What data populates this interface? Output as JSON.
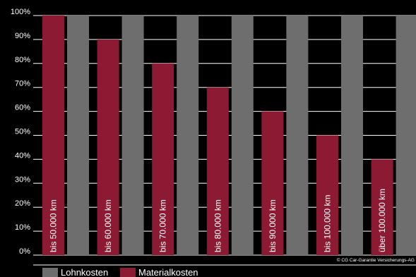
{
  "chart_data": {
    "type": "bar",
    "categories": [
      "bis 50.000 km",
      "bis 60.000 km",
      "bis 70.000 km",
      "bis 80.000 km",
      "bis 90.000 km",
      "bis 100.000 km",
      "über 100.000 km"
    ],
    "series": [
      {
        "name": "Materialkosten",
        "color": "#8b1a32",
        "values": [
          100,
          90,
          80,
          70,
          60,
          50,
          40
        ]
      },
      {
        "name": "Lohnkosten",
        "color": "#6e6e6e",
        "values": [
          100,
          100,
          100,
          100,
          100,
          100,
          100
        ]
      }
    ],
    "yticks": [
      "0%",
      "10%",
      "20%",
      "30%",
      "40%",
      "50%",
      "60%",
      "70%",
      "80%",
      "90%",
      "100%"
    ],
    "ylim": [
      0,
      100
    ],
    "grid": true,
    "legend": {
      "position": "bottom-left",
      "items": [
        {
          "label": "Lohnkosten",
          "color": "#6e6e6e"
        },
        {
          "label": "Materialkosten",
          "color": "#8b1a32"
        }
      ]
    },
    "copyright": "© CG Car-Garantie Versicherungs-AG"
  }
}
